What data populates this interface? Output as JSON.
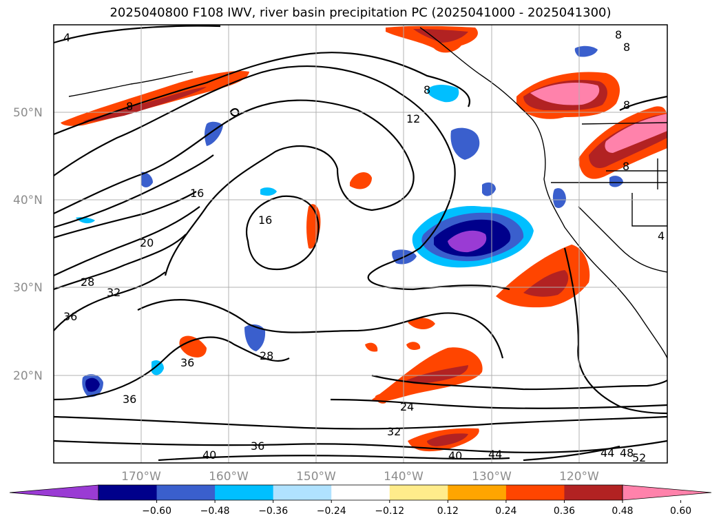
{
  "title": "2025040800 F108 IWV, river basin precipitation PC (2025041000 - 2025041300)",
  "map": {
    "lat_labels": [
      "50°N",
      "40°N",
      "30°N",
      "20°N"
    ],
    "lon_labels": [
      "170°W",
      "160°W",
      "150°W",
      "140°W",
      "130°W",
      "120°W"
    ],
    "contour_labels": [
      "4",
      "8",
      "8",
      "8",
      "8",
      "8",
      "12",
      "16",
      "16",
      "20",
      "28",
      "32",
      "36",
      "36",
      "36",
      "28",
      "24",
      "32",
      "36",
      "40",
      "40",
      "44",
      "44",
      "48",
      "52",
      "4",
      "8"
    ]
  },
  "colorbar": {
    "colors": [
      "#9a3bd4",
      "#00008b",
      "#3a5fcd",
      "#00bfff",
      "#b0e2ff",
      "#ffffff",
      "#ffec8b",
      "#ffa500",
      "#ff4500",
      "#b22222",
      "#ff82ab"
    ],
    "tick_labels": [
      "−0.60",
      "−0.48",
      "−0.36",
      "−0.24",
      "−0.12",
      "0.12",
      "0.24",
      "0.36",
      "0.48",
      "0.60"
    ]
  }
}
